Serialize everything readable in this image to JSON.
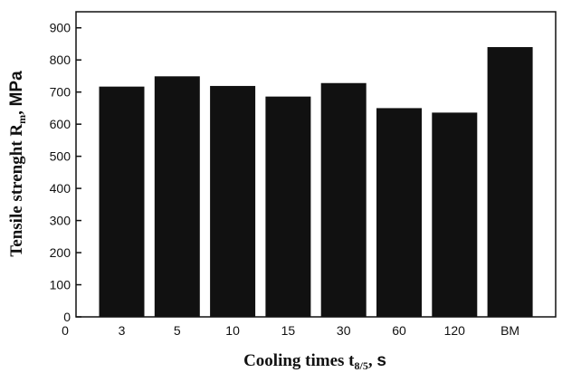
{
  "chart_data": {
    "type": "bar",
    "categories": [
      "3",
      "5",
      "10",
      "15",
      "30",
      "60",
      "120",
      "BM"
    ],
    "values": [
      717,
      749,
      719,
      686,
      728,
      650,
      636,
      840
    ],
    "x_zero_label": "0",
    "xlabel": {
      "main": "Cooling times t",
      "subscript": "8/5",
      "tail": ", ",
      "unit": "s"
    },
    "ylabel": {
      "main": "Tensile strenght R",
      "subscript": "m",
      "tail": ", ",
      "unit": "MPa"
    },
    "ylim": [
      0,
      950
    ],
    "yticks": [
      0,
      100,
      200,
      300,
      400,
      500,
      600,
      700,
      800,
      900
    ],
    "grid": false,
    "legend": "none",
    "bar_color": "#111111"
  }
}
